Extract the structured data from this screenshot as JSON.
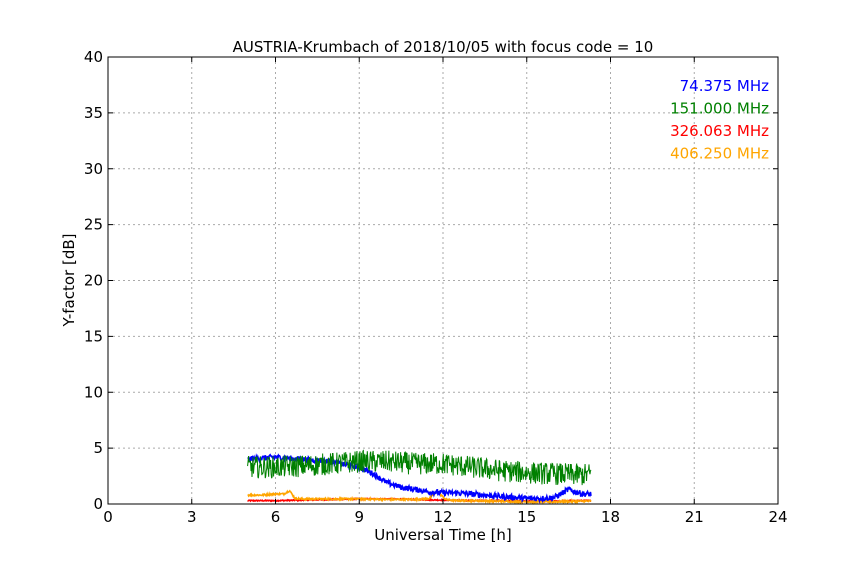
{
  "chart_data": {
    "type": "line",
    "title": "AUSTRIA-Krumbach of 2018/10/05 with focus code = 10",
    "xlabel": "Universal Time [h]",
    "ylabel": "Y-factor [dB]",
    "xlim": [
      0,
      24
    ],
    "ylim": [
      0,
      40
    ],
    "xticks": [
      0,
      3,
      6,
      9,
      12,
      15,
      18,
      21,
      24
    ],
    "yticks": [
      0,
      5,
      10,
      15,
      20,
      25,
      30,
      35,
      40
    ],
    "grid": true,
    "legend_position": "top-right",
    "series": [
      {
        "name": "74.375 MHz",
        "color": "#0000ff",
        "noise": 0.25,
        "x": [
          5.0,
          5.5,
          6.0,
          6.5,
          7.0,
          7.5,
          8.0,
          8.5,
          9.0,
          9.5,
          10.0,
          10.5,
          11.0,
          11.5,
          12.0,
          12.5,
          13.0,
          13.5,
          14.0,
          14.5,
          15.0,
          15.5,
          16.0,
          16.5,
          17.0,
          17.3
        ],
        "y": [
          4.0,
          4.1,
          4.2,
          4.1,
          4.0,
          3.9,
          3.8,
          3.5,
          3.3,
          2.7,
          1.9,
          1.5,
          1.3,
          1.1,
          1.0,
          1.0,
          0.9,
          0.8,
          0.7,
          0.6,
          0.5,
          0.5,
          0.6,
          1.3,
          0.9,
          0.9
        ]
      },
      {
        "name": "151.000 MHz",
        "color": "#008000",
        "noise": 1.0,
        "x": [
          5.0,
          6.0,
          7.0,
          8.0,
          9.0,
          10.0,
          11.0,
          12.0,
          13.0,
          14.0,
          15.0,
          16.0,
          17.0,
          17.3
        ],
        "y": [
          3.3,
          3.3,
          3.4,
          3.6,
          3.8,
          3.8,
          3.6,
          3.6,
          3.3,
          3.0,
          2.8,
          2.7,
          2.6,
          2.7
        ]
      },
      {
        "name": "326.063 MHz",
        "color": "#ff0000",
        "noise": 0.05,
        "x": [
          5.0,
          6.0,
          7.0,
          8.0,
          9.0,
          10.0,
          11.0,
          12.0,
          13.0,
          14.0,
          15.0,
          16.0,
          17.0,
          17.3
        ],
        "y": [
          0.3,
          0.3,
          0.35,
          0.4,
          0.45,
          0.45,
          0.4,
          0.35,
          0.3,
          0.3,
          0.25,
          0.25,
          0.3,
          0.3
        ]
      },
      {
        "name": "406.250 MHz",
        "color": "#ffa500",
        "noise": 0.08,
        "x": [
          5.0,
          5.5,
          6.0,
          6.3,
          6.5,
          6.7,
          7.0,
          8.0,
          9.0,
          10.0,
          11.0,
          11.5,
          11.8,
          12.1,
          12.5,
          13.0,
          14.0,
          15.0,
          16.0,
          17.0,
          17.3
        ],
        "y": [
          0.8,
          0.8,
          0.9,
          0.9,
          1.2,
          0.5,
          0.45,
          0.45,
          0.45,
          0.4,
          0.4,
          0.5,
          1.1,
          0.4,
          0.3,
          0.3,
          0.25,
          0.2,
          0.2,
          0.25,
          0.25
        ]
      }
    ]
  }
}
